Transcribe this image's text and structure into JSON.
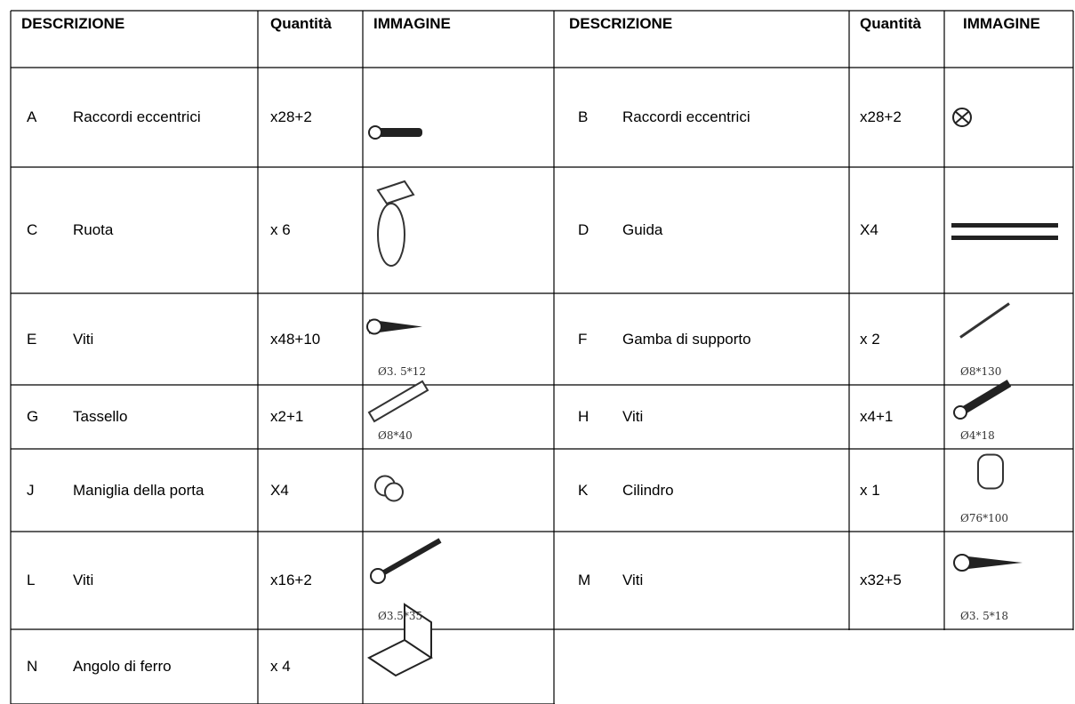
{
  "table": {
    "header": [
      "DESCRIZIONE",
      "Quantità",
      "IMMAGINE",
      "DESCRIZIONE",
      "Quantità",
      "IMMAGINE"
    ],
    "items": [
      {
        "letter": "A",
        "description": "Raccordi eccentrici",
        "quantity": "x28+2"
      },
      {
        "letter": "B",
        "description": "Raccordi eccentrici",
        "quantity": "x28+2"
      },
      {
        "letter": "C",
        "description": "Ruota",
        "quantity": "x 6"
      },
      {
        "letter": "D",
        "description": "Guida",
        "quantity": "X4"
      },
      {
        "letter": "E",
        "description": "Viti",
        "quantity": "x48+10",
        "caption": "Ø3. 5*12"
      },
      {
        "letter": "F",
        "description": "Gamba di supporto",
        "quantity": "x 2",
        "caption": "Ø8*130"
      },
      {
        "letter": "G",
        "description": "Tassello",
        "quantity": "x2+1",
        "caption": "Ø8*40"
      },
      {
        "letter": "H",
        "description": "Viti",
        "quantity": "x4+1",
        "caption": "Ø4*18"
      },
      {
        "letter": "J",
        "description": "Maniglia della porta",
        "quantity": "X4"
      },
      {
        "letter": "K",
        "description": "Cilindro",
        "quantity": "x 1",
        "caption": "Ø76*100"
      },
      {
        "letter": "L",
        "description": "Viti",
        "quantity": "x16+2",
        "caption": "Ø3.5*35"
      },
      {
        "letter": "M",
        "description": "Viti",
        "quantity": "x32+5",
        "caption": "Ø3. 5*18"
      },
      {
        "letter": "N",
        "description": "Angolo di ferro",
        "quantity": "x 4"
      }
    ]
  }
}
